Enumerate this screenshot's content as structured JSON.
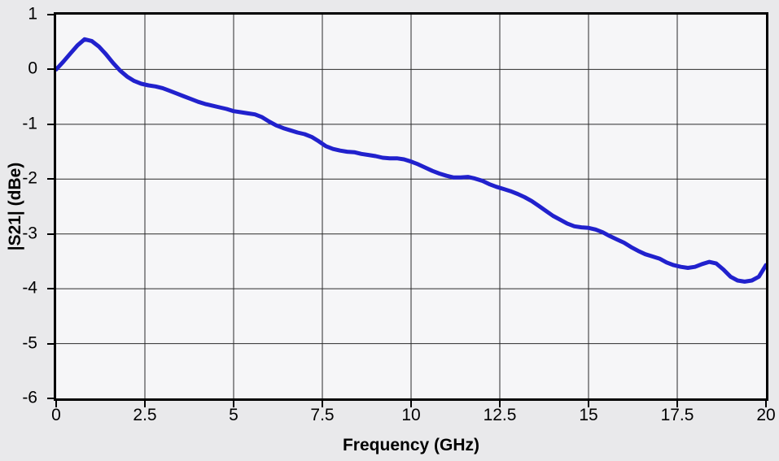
{
  "colors": {
    "page_background": "#e9e9eb",
    "plot_background": "#f6f6f8",
    "plot_border": "#000000",
    "grid": "#2b2b2b",
    "line": "#2121cd",
    "text": "#000000"
  },
  "chart_data": {
    "type": "line",
    "title": "",
    "xlabel": "Frequency (GHz)",
    "ylabel": "|S21| (dBe)",
    "xlim": [
      0,
      20
    ],
    "ylim": [
      -6,
      1
    ],
    "grid": true,
    "legend": "none",
    "x_ticks": [
      0,
      2.5,
      5,
      7.5,
      10,
      12.5,
      15,
      17.5,
      20
    ],
    "x_tick_labels": [
      "0",
      "2.5",
      "5",
      "7.5",
      "10",
      "12.5",
      "15",
      "17.5",
      "20"
    ],
    "y_ticks": [
      1,
      0,
      -1,
      -2,
      -3,
      -4,
      -5,
      -6
    ],
    "y_tick_labels": [
      "1",
      "0",
      "-1",
      "-2",
      "-3",
      "-4",
      "-5",
      "-6"
    ],
    "series": [
      {
        "name": "|S21| (dBe)",
        "color": "#2121cd",
        "line_width": 5,
        "x": [
          0,
          0.2,
          0.4,
          0.6,
          0.8,
          1,
          1.2,
          1.4,
          1.6,
          1.8,
          2,
          2.2,
          2.4,
          2.6,
          2.8,
          3,
          3.2,
          3.4,
          3.6,
          3.8,
          4,
          4.2,
          4.4,
          4.6,
          4.8,
          5,
          5.2,
          5.4,
          5.6,
          5.8,
          6,
          6.2,
          6.4,
          6.6,
          6.8,
          7,
          7.2,
          7.4,
          7.6,
          7.8,
          8,
          8.2,
          8.4,
          8.6,
          8.8,
          9,
          9.2,
          9.4,
          9.6,
          9.8,
          10,
          10.2,
          10.4,
          10.6,
          10.8,
          11,
          11.2,
          11.4,
          11.6,
          11.8,
          12,
          12.2,
          12.4,
          12.6,
          12.8,
          13,
          13.2,
          13.4,
          13.6,
          13.8,
          14,
          14.2,
          14.4,
          14.6,
          14.8,
          15,
          15.2,
          15.4,
          15.6,
          15.8,
          16,
          16.2,
          16.4,
          16.6,
          16.8,
          17,
          17.2,
          17.4,
          17.6,
          17.8,
          18,
          18.2,
          18.4,
          18.6,
          18.8,
          19,
          19.2,
          19.4,
          19.6,
          19.8,
          20
        ],
        "y": [
          0,
          0.14,
          0.29,
          0.44,
          0.55,
          0.52,
          0.42,
          0.28,
          0.12,
          -0.02,
          -0.13,
          -0.21,
          -0.26,
          -0.29,
          -0.31,
          -0.34,
          -0.39,
          -0.44,
          -0.49,
          -0.54,
          -0.59,
          -0.63,
          -0.66,
          -0.69,
          -0.72,
          -0.76,
          -0.78,
          -0.8,
          -0.82,
          -0.87,
          -0.95,
          -1.02,
          -1.07,
          -1.11,
          -1.15,
          -1.18,
          -1.23,
          -1.31,
          -1.4,
          -1.45,
          -1.48,
          -1.5,
          -1.51,
          -1.54,
          -1.56,
          -1.58,
          -1.61,
          -1.62,
          -1.62,
          -1.64,
          -1.68,
          -1.73,
          -1.79,
          -1.85,
          -1.9,
          -1.94,
          -1.97,
          -1.97,
          -1.96,
          -1.99,
          -2.03,
          -2.09,
          -2.14,
          -2.18,
          -2.22,
          -2.27,
          -2.33,
          -2.4,
          -2.49,
          -2.58,
          -2.67,
          -2.74,
          -2.81,
          -2.86,
          -2.88,
          -2.89,
          -2.92,
          -2.97,
          -3.04,
          -3.1,
          -3.16,
          -3.24,
          -3.31,
          -3.37,
          -3.41,
          -3.45,
          -3.52,
          -3.57,
          -3.6,
          -3.62,
          -3.6,
          -3.55,
          -3.51,
          -3.54,
          -3.65,
          -3.78,
          -3.85,
          -3.87,
          -3.85,
          -3.78,
          -3.57
        ]
      }
    ]
  }
}
